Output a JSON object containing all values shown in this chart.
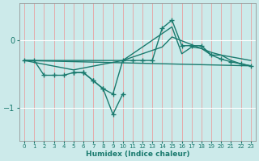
{
  "xlabel": "Humidex (Indice chaleur)",
  "bg_color": "#cceaea",
  "line_color": "#1a7a6e",
  "grid_color": "#ffffff",
  "xlim": [
    -0.5,
    23.5
  ],
  "ylim": [
    -1.5,
    0.55
  ],
  "yticks": [
    0,
    -1
  ],
  "xticks": [
    0,
    1,
    2,
    3,
    4,
    5,
    6,
    7,
    8,
    9,
    10,
    11,
    12,
    13,
    14,
    15,
    16,
    17,
    18,
    19,
    20,
    21,
    22,
    23
  ],
  "line1_x": [
    0,
    1,
    2,
    3,
    4,
    5,
    6,
    7,
    8,
    9,
    10,
    11,
    12,
    13,
    14,
    15,
    16,
    17,
    18,
    19,
    20,
    21,
    22,
    23
  ],
  "line1_y": [
    -0.3,
    -0.3,
    -0.52,
    -0.52,
    -0.52,
    -0.48,
    -0.48,
    -0.6,
    -0.72,
    -0.8,
    -0.3,
    -0.3,
    -0.3,
    -0.3,
    0.18,
    0.3,
    -0.08,
    -0.08,
    -0.08,
    -0.22,
    -0.28,
    -0.32,
    -0.35,
    -0.38
  ],
  "line2_x": [
    0,
    23
  ],
  "line2_y": [
    -0.3,
    -0.38
  ],
  "line3_x": [
    0,
    10,
    14,
    15,
    19,
    20,
    23
  ],
  "line3_y": [
    -0.3,
    -0.3,
    -0.1,
    0.05,
    -0.18,
    -0.22,
    -0.3
  ],
  "line4_x": [
    0,
    5,
    10,
    14,
    15,
    16,
    17,
    18,
    19,
    20,
    21,
    22,
    23
  ],
  "line4_y": [
    -0.3,
    -0.44,
    -0.3,
    0.1,
    0.2,
    -0.2,
    -0.1,
    -0.12,
    -0.22,
    -0.22,
    -0.3,
    -0.35,
    -0.38
  ],
  "line5_x": [
    5,
    6,
    7,
    8,
    9,
    10
  ],
  "line5_y": [
    -0.48,
    -0.48,
    -0.6,
    -0.72,
    -1.1,
    -0.8
  ]
}
